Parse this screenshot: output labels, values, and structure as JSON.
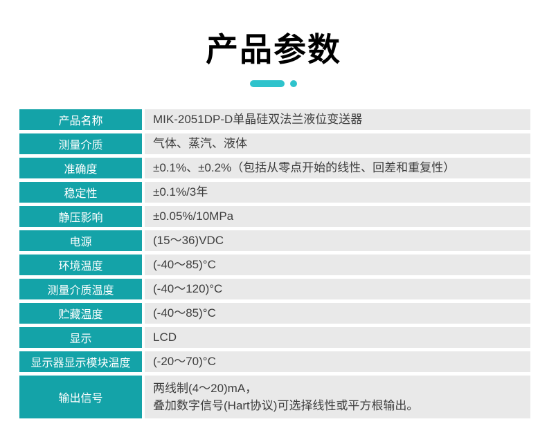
{
  "header": {
    "title": "产品参数"
  },
  "colors": {
    "title_text": "#000000",
    "accent": "#2fc3cc",
    "label_bg": "#14a3a8",
    "label_text": "#ffffff",
    "value_bg": "#e9e9e9",
    "value_text": "#3d3d3d"
  },
  "table": {
    "rows": [
      {
        "label": "产品名称",
        "value": "MIK-2051DP-D单晶硅双法兰液位变送器",
        "tall": false
      },
      {
        "label": "测量介质",
        "value": "气体、蒸汽、液体",
        "tall": false
      },
      {
        "label": "准确度",
        "value": "±0.1%、±0.2%（包括从零点开始的线性、回差和重复性）",
        "tall": false
      },
      {
        "label": "稳定性",
        "value": "±0.1%/3年",
        "tall": false
      },
      {
        "label": "静压影响",
        "value": "±0.05%/10MPa",
        "tall": false
      },
      {
        "label": "电源",
        "value": "(15～36)VDC",
        "tall": false
      },
      {
        "label": "环境温度",
        "value": "(-40～85)°C",
        "tall": false
      },
      {
        "label": "测量介质温度",
        "value": "(-40～120)°C",
        "tall": false
      },
      {
        "label": "贮藏温度",
        "value": "(-40～85)°C",
        "tall": false
      },
      {
        "label": "显示",
        "value": "LCD",
        "tall": false
      },
      {
        "label": "显示器显示模块温度",
        "value": "(-20～70)°C",
        "tall": false
      },
      {
        "label": "输出信号",
        "value": "两线制(4～20)mA，\n叠加数字信号(Hart协议)可选择线性或平方根输出。",
        "tall": true
      }
    ]
  }
}
